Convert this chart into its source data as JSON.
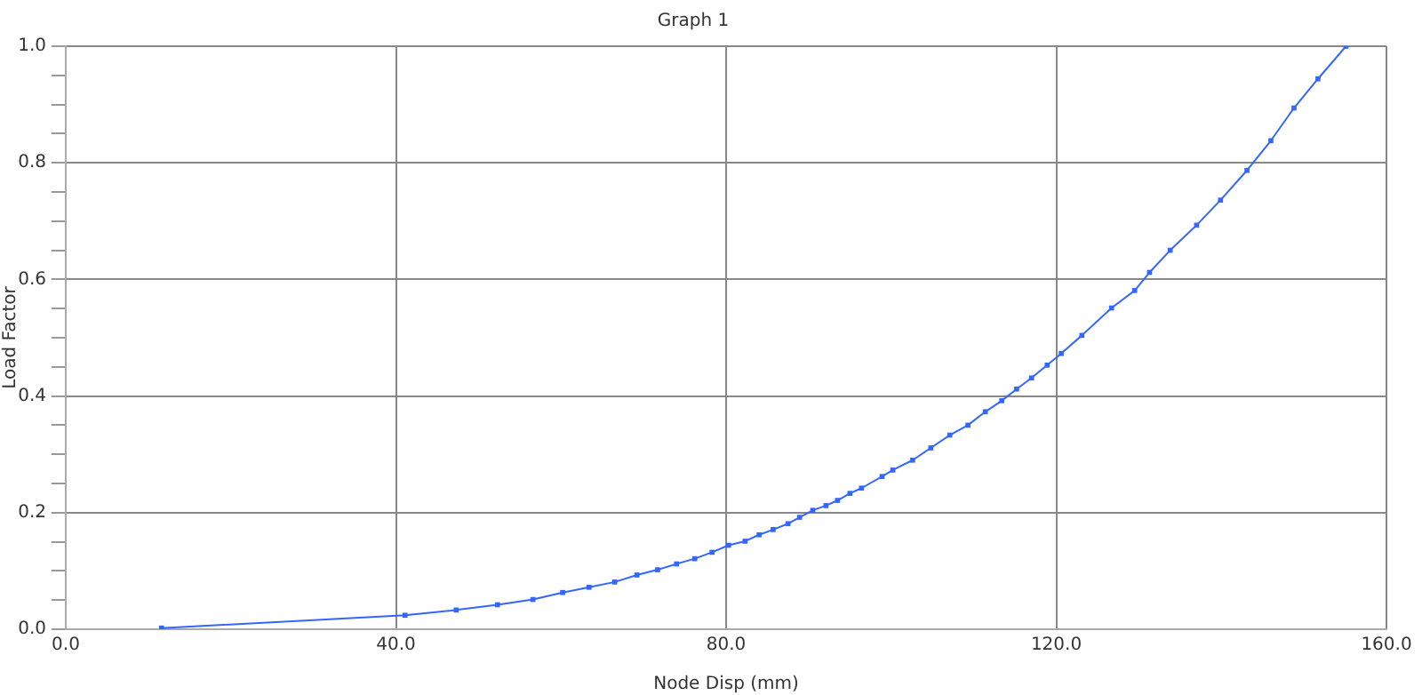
{
  "chart_data": {
    "type": "line",
    "title": "Graph 1",
    "xlabel": "Node Disp (mm)",
    "ylabel": "Load Factor",
    "x": [
      11.6,
      41.1,
      47.3,
      52.3,
      56.6,
      60.2,
      63.4,
      66.5,
      69.2,
      71.7,
      74.0,
      76.2,
      78.3,
      80.3,
      82.3,
      84.0,
      85.7,
      87.5,
      88.9,
      90.5,
      92.1,
      93.5,
      95.0,
      96.4,
      98.9,
      100.2,
      102.6,
      104.8,
      107.1,
      109.3,
      111.4,
      113.4,
      115.2,
      117.0,
      118.9,
      120.6,
      123.1,
      126.7,
      129.5,
      131.3,
      133.8,
      137.0,
      139.9,
      143.1,
      146.0,
      148.8,
      151.7,
      155.1
    ],
    "series": [
      {
        "color": "#3366ff",
        "values": [
          0.002,
          0.024,
          0.033,
          0.042,
          0.051,
          0.063,
          0.072,
          0.081,
          0.093,
          0.102,
          0.112,
          0.121,
          0.132,
          0.144,
          0.151,
          0.162,
          0.171,
          0.181,
          0.192,
          0.204,
          0.212,
          0.221,
          0.233,
          0.242,
          0.262,
          0.273,
          0.29,
          0.311,
          0.333,
          0.35,
          0.373,
          0.392,
          0.412,
          0.431,
          0.453,
          0.473,
          0.504,
          0.551,
          0.581,
          0.612,
          0.65,
          0.693,
          0.736,
          0.787,
          0.838,
          0.894,
          0.944,
          1.0
        ]
      }
    ],
    "xlim": [
      0,
      160
    ],
    "xticks": [
      {
        "value": 0,
        "label": "0.0"
      },
      {
        "value": 40,
        "label": "40.0"
      },
      {
        "value": 80,
        "label": "80.0"
      },
      {
        "value": 120,
        "label": "120.0"
      },
      {
        "value": 160,
        "label": "160.0"
      }
    ],
    "ylim": [
      0,
      1
    ],
    "yticks": [
      {
        "value": 0,
        "label": "0.0"
      },
      {
        "value": 0.05,
        "label": null
      },
      {
        "value": 0.1,
        "label": null
      },
      {
        "value": 0.15,
        "label": null
      },
      {
        "value": 0.2,
        "label": "0.2"
      },
      {
        "value": 0.25,
        "label": null
      },
      {
        "value": 0.3,
        "label": null
      },
      {
        "value": 0.35,
        "label": null
      },
      {
        "value": 0.4,
        "label": "0.4"
      },
      {
        "value": 0.45,
        "label": null
      },
      {
        "value": 0.5,
        "label": null
      },
      {
        "value": 0.55,
        "label": null
      },
      {
        "value": 0.6,
        "label": "0.6"
      },
      {
        "value": 0.65,
        "label": null
      },
      {
        "value": 0.7,
        "label": null
      },
      {
        "value": 0.75,
        "label": null
      },
      {
        "value": 0.8,
        "label": "0.8"
      },
      {
        "value": 0.85,
        "label": null
      },
      {
        "value": 0.9,
        "label": null
      },
      {
        "value": 0.95,
        "label": null
      },
      {
        "value": 1,
        "label": "1.0"
      }
    ],
    "grid": true,
    "legend": false,
    "marker": "square",
    "line_style": "solid"
  }
}
